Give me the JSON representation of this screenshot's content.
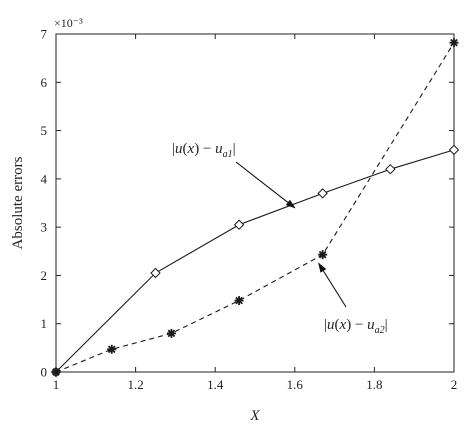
{
  "chart_data": {
    "type": "line",
    "xlabel": "X",
    "ylabel": "Absolute errors",
    "xlim": [
      1,
      2
    ],
    "ylim": [
      0,
      7
    ],
    "y_scale_note": "×10⁻³",
    "x_ticks": [
      "1",
      "1.2",
      "1.4",
      "1.6",
      "1.8",
      "2"
    ],
    "y_ticks": [
      "0",
      "1",
      "2",
      "3",
      "4",
      "5",
      "6",
      "7"
    ],
    "grid": false,
    "series": [
      {
        "name": "|u(x) − ua1|",
        "line_style": "solid",
        "marker": "diamond",
        "color": "#1a1a1a",
        "x": [
          1.0,
          1.25,
          1.46,
          1.67,
          1.84,
          2.0
        ],
        "y": [
          0.0,
          2.05,
          3.05,
          3.7,
          4.2,
          4.6
        ]
      },
      {
        "name": "|u(x) − ua2|",
        "line_style": "dashed",
        "marker": "star",
        "color": "#1a1a1a",
        "x": [
          1.0,
          1.14,
          1.29,
          1.46,
          1.67,
          2.0
        ],
        "y": [
          0.0,
          0.47,
          0.8,
          1.48,
          2.43,
          6.82
        ]
      }
    ],
    "annotations": [
      {
        "label_parts": [
          "|",
          "u",
          "(",
          "x",
          ") − ",
          "u",
          "a1",
          "|"
        ],
        "points_to": {
          "x": 1.6,
          "y": 3.4
        }
      },
      {
        "label_parts": [
          "|",
          "u",
          "(",
          "x",
          ") − ",
          "u",
          "a2",
          "|"
        ],
        "points_to": {
          "x": 1.66,
          "y": 2.25
        }
      }
    ]
  }
}
